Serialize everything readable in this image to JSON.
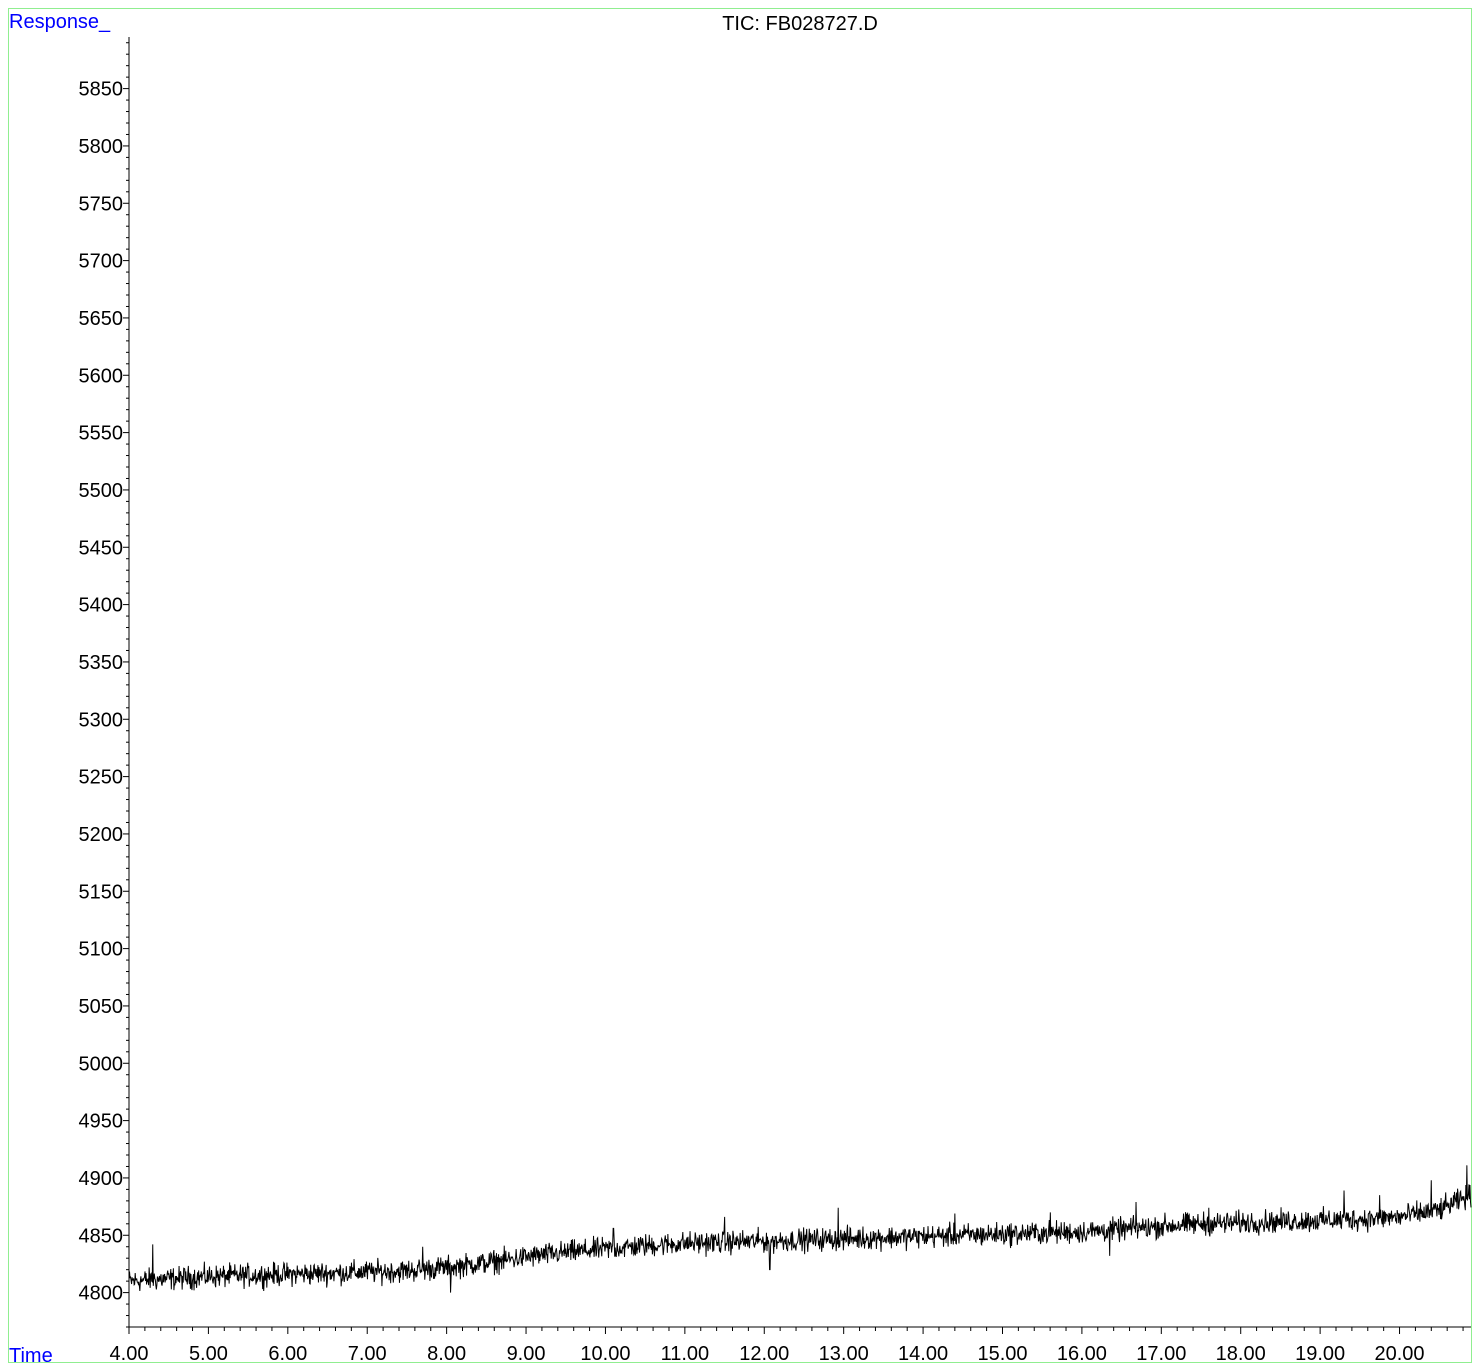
{
  "chart_data": {
    "type": "line",
    "title": "TIC: FB028727.D",
    "ylabel": "Response_",
    "xlabel": "Time",
    "xlim": [
      4.0,
      20.9
    ],
    "ylim": [
      4770,
      5895
    ],
    "x_ticks": [
      "4.00",
      "5.00",
      "6.00",
      "7.00",
      "8.00",
      "9.00",
      "10.00",
      "11.00",
      "12.00",
      "13.00",
      "14.00",
      "15.00",
      "16.00",
      "17.00",
      "18.00",
      "19.00",
      "20.00"
    ],
    "y_ticks": [
      "4800",
      "4850",
      "4900",
      "4950",
      "5000",
      "5050",
      "5100",
      "5150",
      "5200",
      "5250",
      "5300",
      "5350",
      "5400",
      "5450",
      "5500",
      "5550",
      "5600",
      "5650",
      "5700",
      "5750",
      "5800",
      "5850"
    ],
    "series": [
      {
        "x": [
          4.0,
          4.5,
          5.0,
          5.5,
          6.0,
          6.5,
          7.0,
          7.5,
          8.0,
          8.5,
          9.0,
          9.5,
          10.0,
          10.5,
          11.0,
          11.5,
          12.0,
          12.5,
          13.0,
          13.5,
          14.0,
          14.5,
          15.0,
          15.5,
          16.0,
          16.5,
          17.0,
          17.5,
          18.0,
          18.5,
          19.0,
          19.5,
          20.0,
          20.5,
          20.9
        ],
        "y": [
          4810,
          4812,
          4814,
          4815,
          4816,
          4817,
          4818,
          4819,
          4822,
          4826,
          4831,
          4835,
          4838,
          4841,
          4843,
          4844,
          4845,
          4846,
          4847,
          4848,
          4849,
          4850,
          4851,
          4852,
          4853,
          4855,
          4858,
          4860,
          4861,
          4862,
          4863,
          4864,
          4866,
          4872,
          4885
        ]
      }
    ],
    "noise_amplitude": 7,
    "spikes": [
      {
        "x": 4.3,
        "y": 4842
      },
      {
        "x": 7.7,
        "y": 4840
      },
      {
        "x": 8.05,
        "y": 4800
      },
      {
        "x": 10.1,
        "y": 4856
      },
      {
        "x": 11.5,
        "y": 4866
      },
      {
        "x": 12.07,
        "y": 4820
      },
      {
        "x": 12.93,
        "y": 4874
      },
      {
        "x": 14.4,
        "y": 4869
      },
      {
        "x": 15.6,
        "y": 4870
      },
      {
        "x": 16.35,
        "y": 4832
      },
      {
        "x": 16.68,
        "y": 4879
      },
      {
        "x": 17.6,
        "y": 4874
      },
      {
        "x": 19.3,
        "y": 4889
      },
      {
        "x": 19.75,
        "y": 4885
      },
      {
        "x": 20.4,
        "y": 4898
      },
      {
        "x": 20.85,
        "y": 4911
      }
    ],
    "grid": false,
    "colors": {
      "trace": "#000000",
      "axis_labels": "#0000ff",
      "frame": "#90ee90"
    }
  }
}
